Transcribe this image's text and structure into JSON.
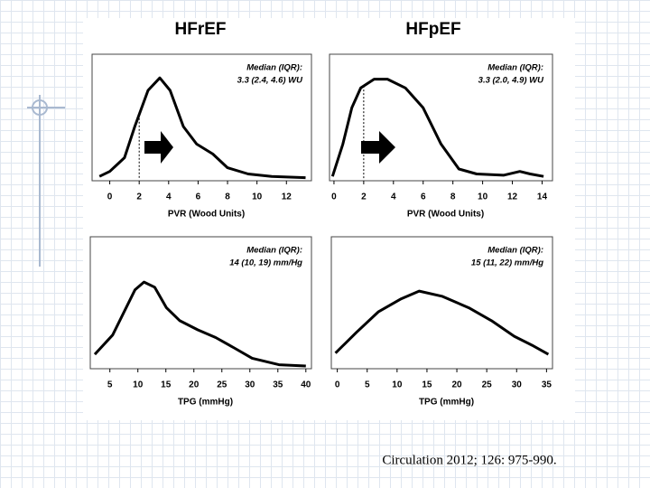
{
  "columns": [
    "HFrEF",
    "HFpEF"
  ],
  "citation": "Circulation 2012; 126: 975-990.",
  "chart_data": [
    {
      "type": "line",
      "xlabel": "PVR (Wood Units)",
      "annotation": [
        "Median (IQR):",
        "3.3 (2.4, 4.6) WU"
      ],
      "x": [
        -0.7,
        0,
        1,
        1.7,
        2.6,
        3.4,
        4.1,
        5,
        5.9,
        7,
        8,
        9.4,
        11,
        13.3
      ],
      "values": [
        0.02,
        0.06,
        0.17,
        0.42,
        0.71,
        0.81,
        0.71,
        0.42,
        0.28,
        0.2,
        0.09,
        0.04,
        0.02,
        0.01
      ],
      "xlim": [
        -1.2,
        13.7
      ],
      "ylim": [
        0,
        1
      ],
      "xticks": [
        0,
        2,
        4,
        6,
        8,
        10,
        12
      ],
      "vline": 2,
      "color": "#000000"
    },
    {
      "type": "line",
      "xlabel": "PVR (Wood Units)",
      "annotation": [
        "Median (IQR):",
        "3.3 (2.0, 4.9) WU"
      ],
      "x": [
        -0.1,
        0.6,
        1.2,
        1.8,
        2.7,
        3.6,
        4.8,
        6,
        7.2,
        8.4,
        9.6,
        11.4,
        12.5,
        13.2,
        14.1
      ],
      "values": [
        0.02,
        0.28,
        0.57,
        0.73,
        0.8,
        0.8,
        0.73,
        0.57,
        0.28,
        0.08,
        0.04,
        0.03,
        0.06,
        0.04,
        0.02
      ],
      "xlim": [
        -0.3,
        14.7
      ],
      "ylim": [
        0,
        1
      ],
      "xticks": [
        0,
        2,
        4,
        6,
        8,
        10,
        12,
        14
      ],
      "vline": 2,
      "color": "#000000"
    },
    {
      "type": "line",
      "xlabel": "TPG (mmHg)",
      "annotation": [
        "Median (IQR):",
        "14 (10, 19) mm/Hg"
      ],
      "x": [
        2.3,
        5.5,
        7.9,
        9.5,
        11.1,
        13,
        15.1,
        17.5,
        20.7,
        23.9,
        27.2,
        30.4,
        35.2,
        40
      ],
      "values": [
        0.09,
        0.24,
        0.45,
        0.59,
        0.65,
        0.61,
        0.45,
        0.35,
        0.28,
        0.22,
        0.14,
        0.06,
        0.01,
        0
      ],
      "xlim": [
        1.5,
        41
      ],
      "ylim": [
        0,
        1
      ],
      "xticks": [
        5,
        10,
        15,
        20,
        25,
        30,
        35,
        40
      ],
      "color": "#000000"
    },
    {
      "type": "line",
      "xlabel": "TPG (mmHg)",
      "annotation": [
        "Median (IQR):",
        "15 (11, 22) mm/Hg"
      ],
      "x": [
        -0.3,
        3.2,
        6.9,
        10.7,
        13.7,
        17.5,
        22,
        25.8,
        29.6,
        32.6,
        35.3
      ],
      "values": [
        0.1,
        0.26,
        0.42,
        0.52,
        0.58,
        0.54,
        0.45,
        0.35,
        0.23,
        0.16,
        0.09
      ],
      "xlim": [
        -1,
        36
      ],
      "ylim": [
        0,
        1
      ],
      "xticks": [
        0,
        5,
        10,
        15,
        20,
        25,
        30,
        35
      ],
      "color": "#000000"
    }
  ]
}
